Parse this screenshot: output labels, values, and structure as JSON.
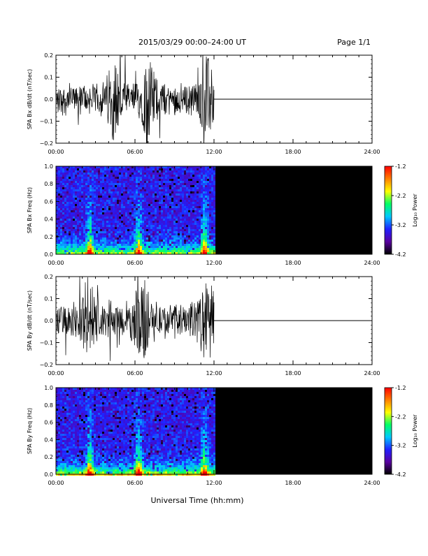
{
  "header": {
    "title": "2015/03/29   00:00–24:00 UT",
    "page": "Page 1/1"
  },
  "footer": {
    "xlabel": "Universal Time (hh:mm)"
  },
  "colors": {
    "background": "#ffffff",
    "trace": "#000000",
    "empty_spectrogram": "#000000",
    "colormap": [
      "#000000",
      "#5a00a0",
      "#2020ff",
      "#00c8ff",
      "#00ff66",
      "#ffff00",
      "#ff8000",
      "#ff0000"
    ]
  },
  "chart_data": [
    {
      "id": "bx-waveform",
      "type": "line",
      "ylabel": "SPA Bx dB/dt (nT/sec)",
      "ylim": [
        -0.2,
        0.2
      ],
      "yticks": [
        "0.2",
        "0.1",
        "0.0",
        "−0.1",
        "−0.2"
      ],
      "ytick_values": [
        0.2,
        0.1,
        0.0,
        -0.1,
        -0.2
      ],
      "xlim_hours": [
        0,
        24
      ],
      "xticks": [
        "00:00",
        "06:00",
        "12:00",
        "18:00",
        "24:00"
      ],
      "data_coverage_hours": [
        0,
        12
      ],
      "baseline_after_coverage": 0.0,
      "noise_amplitude": 0.08,
      "bursts_hours": [
        4.5,
        7.0,
        11.5
      ]
    },
    {
      "id": "bx-spectrogram",
      "type": "heatmap",
      "ylabel": "SPA Bx Freq (Hz)",
      "ylim": [
        0.0,
        1.0
      ],
      "yticks": [
        "1.0",
        "0.8",
        "0.6",
        "0.4",
        "0.2",
        "0.0"
      ],
      "ytick_values": [
        1.0,
        0.8,
        0.6,
        0.4,
        0.2,
        0.0
      ],
      "xlim_hours": [
        0,
        24
      ],
      "xticks": [
        "00:00",
        "06:00",
        "12:00",
        "18:00",
        "24:00"
      ],
      "data_coverage_hours": [
        0,
        12
      ],
      "colorbar": {
        "label": "Log₁₀ Power",
        "range": [
          -4.2,
          -1.2
        ],
        "ticks": [
          "-1.2",
          "-2.2",
          "-3.2",
          "-4.2"
        ],
        "tick_values": [
          -1.2,
          -2.2,
          -3.2,
          -4.2
        ]
      },
      "enhancements_hours": [
        2.5,
        6.2,
        11.2
      ]
    },
    {
      "id": "by-waveform",
      "type": "line",
      "ylabel": "SPA By dB/dt (nT/sec)",
      "ylim": [
        -0.2,
        0.2
      ],
      "yticks": [
        "0.2",
        "0.1",
        "0.0",
        "−0.1",
        "−0.2"
      ],
      "ytick_values": [
        0.2,
        0.1,
        0.0,
        -0.1,
        -0.2
      ],
      "xlim_hours": [
        0,
        24
      ],
      "xticks": [
        "00:00",
        "06:00",
        "12:00",
        "18:00",
        "24:00"
      ],
      "data_coverage_hours": [
        0,
        12
      ],
      "baseline_after_coverage": 0.0,
      "noise_amplitude": 0.09,
      "bursts_hours": [
        2.5,
        6.5,
        11.5
      ]
    },
    {
      "id": "by-spectrogram",
      "type": "heatmap",
      "ylabel": "SPA By Freq (Hz)",
      "ylim": [
        0.0,
        1.0
      ],
      "yticks": [
        "1.0",
        "0.8",
        "0.6",
        "0.4",
        "0.2",
        "0.0"
      ],
      "ytick_values": [
        1.0,
        0.8,
        0.6,
        0.4,
        0.2,
        0.0
      ],
      "xlim_hours": [
        0,
        24
      ],
      "xticks": [
        "00:00",
        "06:00",
        "12:00",
        "18:00",
        "24:00"
      ],
      "data_coverage_hours": [
        0,
        12
      ],
      "colorbar": {
        "label": "Log₁₀ Power",
        "range": [
          -4.2,
          -1.2
        ],
        "ticks": [
          "-1.2",
          "-2.2",
          "-3.2",
          "-4.2"
        ],
        "tick_values": [
          -1.2,
          -2.2,
          -3.2,
          -4.2
        ]
      },
      "enhancements_hours": [
        2.5,
        6.2,
        11.2
      ]
    }
  ]
}
